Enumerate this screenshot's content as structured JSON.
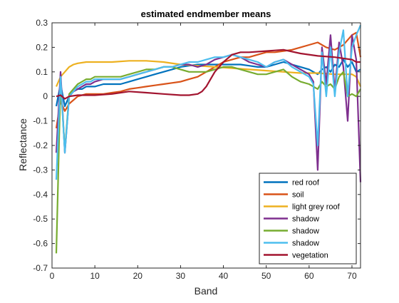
{
  "chart_data": {
    "type": "line",
    "title": "estimated endmember means",
    "xlabel": "Band",
    "ylabel": "Reflectance",
    "xlim": [
      0,
      72
    ],
    "ylim": [
      -0.7,
      0.3
    ],
    "xticks": [
      0,
      10,
      20,
      30,
      40,
      50,
      60,
      70
    ],
    "yticks": [
      -0.7,
      -0.6,
      -0.5,
      -0.4,
      -0.3,
      -0.2,
      -0.1,
      0,
      0.1,
      0.2,
      0.3
    ],
    "ytick_labels": [
      "-0.7",
      "-0.6",
      "-0.5",
      "-0.4",
      "-0.3",
      "-0.2",
      "-0.1",
      "0",
      "0.1",
      "0.2",
      "0.3"
    ],
    "grid": false,
    "legend_position": "bottom-right",
    "series": [
      {
        "name": "red roof",
        "color": "#0072BD",
        "x": [
          1,
          2,
          3,
          4,
          5,
          6,
          7,
          8,
          9,
          10,
          12,
          14,
          16,
          18,
          20,
          22,
          24,
          26,
          28,
          30,
          32,
          34,
          36,
          38,
          40,
          42,
          44,
          46,
          48,
          50,
          52,
          54,
          56,
          58,
          60,
          61,
          62,
          63,
          64,
          65,
          66,
          67,
          68,
          69,
          70,
          71,
          72
        ],
        "y": [
          -0.04,
          0.05,
          -0.04,
          0.0,
          0.02,
          0.03,
          0.03,
          0.04,
          0.04,
          0.04,
          0.05,
          0.05,
          0.05,
          0.06,
          0.07,
          0.08,
          0.09,
          0.1,
          0.11,
          0.12,
          0.125,
          0.13,
          0.13,
          0.13,
          0.13,
          0.13,
          0.13,
          0.125,
          0.12,
          0.12,
          0.13,
          0.14,
          0.13,
          0.12,
          0.11,
          0.1,
          0.09,
          0.11,
          0.12,
          0.1,
          0.13,
          0.12,
          0.15,
          0.12,
          0.14,
          0.1,
          0.11
        ]
      },
      {
        "name": "soil",
        "color": "#D95319",
        "x": [
          1,
          2,
          3,
          4,
          6,
          8,
          10,
          12,
          14,
          16,
          18,
          20,
          22,
          24,
          26,
          28,
          30,
          32,
          34,
          36,
          38,
          40,
          42,
          44,
          46,
          48,
          50,
          52,
          54,
          56,
          58,
          60,
          62,
          64,
          66,
          68,
          70,
          71,
          72
        ],
        "y": [
          -0.13,
          -0.02,
          -0.06,
          -0.03,
          0.0,
          0.01,
          0.01,
          0.01,
          0.015,
          0.02,
          0.03,
          0.035,
          0.04,
          0.045,
          0.05,
          0.055,
          0.06,
          0.07,
          0.08,
          0.1,
          0.12,
          0.14,
          0.15,
          0.16,
          0.16,
          0.17,
          0.18,
          0.18,
          0.185,
          0.19,
          0.2,
          0.21,
          0.22,
          0.2,
          0.19,
          0.21,
          0.25,
          0.26,
          0.16
        ]
      },
      {
        "name": "light grey roof",
        "color": "#EDB120",
        "x": [
          1,
          2,
          3,
          4,
          5,
          6,
          8,
          10,
          14,
          18,
          22,
          26,
          30,
          34,
          38,
          42,
          46,
          50,
          54,
          58,
          62,
          66,
          70,
          71,
          72
        ],
        "y": [
          0.04,
          0.08,
          0.1,
          0.12,
          0.13,
          0.135,
          0.14,
          0.14,
          0.14,
          0.145,
          0.145,
          0.14,
          0.13,
          0.125,
          0.12,
          0.115,
          0.11,
          0.105,
          0.1,
          0.095,
          0.095,
          0.09,
          0.09,
          0.08,
          0.04
        ]
      },
      {
        "name": "shadow",
        "color": "#7E2F8E",
        "x": [
          1,
          2,
          3,
          4,
          5,
          6,
          7,
          8,
          9,
          10,
          12,
          14,
          16,
          18,
          20,
          22,
          24,
          26,
          28,
          30,
          32,
          34,
          36,
          38,
          40,
          42,
          44,
          46,
          48,
          50,
          52,
          54,
          56,
          58,
          60,
          61,
          62,
          63,
          64,
          65,
          66,
          67,
          68,
          69,
          70,
          71,
          72
        ],
        "y": [
          -0.23,
          0.1,
          -0.23,
          0.0,
          0.02,
          0.03,
          0.04,
          0.05,
          0.05,
          0.06,
          0.07,
          0.07,
          0.07,
          0.08,
          0.09,
          0.1,
          0.11,
          0.12,
          0.12,
          0.13,
          0.13,
          0.12,
          0.13,
          0.15,
          0.16,
          0.17,
          0.16,
          0.14,
          0.13,
          0.12,
          0.14,
          0.15,
          0.13,
          0.11,
          0.09,
          0.06,
          -0.3,
          0.2,
          0.05,
          0.25,
          0.02,
          0.22,
          0.12,
          -0.1,
          0.25,
          0.15,
          -0.35
        ]
      },
      {
        "name": "shadow",
        "color": "#77AC30",
        "x": [
          1,
          2,
          3,
          4,
          5,
          6,
          7,
          8,
          9,
          10,
          12,
          14,
          16,
          18,
          20,
          22,
          24,
          26,
          28,
          30,
          32,
          34,
          36,
          38,
          40,
          42,
          44,
          46,
          48,
          50,
          52,
          54,
          56,
          58,
          60,
          61,
          62,
          63,
          64,
          65,
          66,
          67,
          68,
          69,
          70,
          71,
          72
        ],
        "y": [
          -0.64,
          0.06,
          -0.22,
          0.01,
          0.03,
          0.05,
          0.06,
          0.07,
          0.07,
          0.08,
          0.08,
          0.08,
          0.08,
          0.09,
          0.1,
          0.11,
          0.11,
          0.12,
          0.12,
          0.11,
          0.1,
          0.1,
          0.1,
          0.11,
          0.12,
          0.12,
          0.11,
          0.1,
          0.09,
          0.09,
          0.1,
          0.11,
          0.08,
          0.06,
          0.05,
          0.04,
          0.03,
          0.06,
          0.04,
          0.05,
          0.03,
          0.08,
          0.1,
          0.0,
          0.01,
          0.0,
          0.03
        ]
      },
      {
        "name": "shadow",
        "color": "#4DBEEE",
        "x": [
          1,
          2,
          3,
          4,
          5,
          6,
          7,
          8,
          9,
          10,
          12,
          14,
          16,
          18,
          20,
          22,
          24,
          26,
          28,
          30,
          32,
          34,
          36,
          38,
          40,
          42,
          44,
          46,
          48,
          50,
          52,
          54,
          56,
          58,
          60,
          61,
          62,
          63,
          64,
          65,
          66,
          67,
          68,
          69,
          70,
          71,
          72
        ],
        "y": [
          -0.34,
          0.08,
          -0.23,
          0.0,
          0.02,
          0.04,
          0.05,
          0.06,
          0.06,
          0.07,
          0.07,
          0.07,
          0.07,
          0.08,
          0.09,
          0.1,
          0.11,
          0.12,
          0.12,
          0.13,
          0.14,
          0.14,
          0.15,
          0.16,
          0.16,
          0.17,
          0.16,
          0.15,
          0.14,
          0.12,
          0.14,
          0.15,
          0.12,
          0.1,
          0.08,
          0.05,
          -0.2,
          0.18,
          0.0,
          0.2,
          0.0,
          0.18,
          0.27,
          0.0,
          0.2,
          0.25,
          0.29
        ]
      },
      {
        "name": "vegetation",
        "color": "#A2142F",
        "x": [
          1,
          2,
          3,
          4,
          6,
          8,
          10,
          14,
          18,
          22,
          26,
          30,
          32,
          34,
          35,
          36,
          37,
          38,
          40,
          42,
          44,
          46,
          50,
          54,
          58,
          62,
          66,
          70,
          71,
          72
        ],
        "y": [
          0.0,
          0.005,
          -0.01,
          0.0,
          0.005,
          0.005,
          0.005,
          0.01,
          0.02,
          0.015,
          0.01,
          0.005,
          0.005,
          0.01,
          0.02,
          0.04,
          0.07,
          0.1,
          0.14,
          0.17,
          0.18,
          0.18,
          0.185,
          0.19,
          0.175,
          0.165,
          0.16,
          0.15,
          0.14,
          0.14
        ]
      }
    ]
  }
}
